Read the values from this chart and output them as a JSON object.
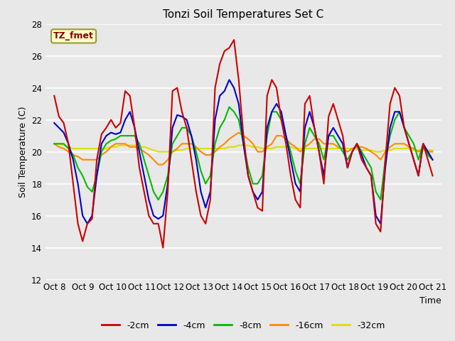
{
  "title": "Tonzi Soil Temperatures Set C",
  "xlabel": "Time",
  "ylabel": "Soil Temperature (C)",
  "xlim": [
    -0.3,
    13.3
  ],
  "ylim": [
    12,
    28
  ],
  "yticks": [
    12,
    14,
    16,
    18,
    20,
    22,
    24,
    26,
    28
  ],
  "xtick_labels": [
    "Oct 8",
    "Oct 9",
    "Oct 10",
    "Oct 11",
    "Oct 12",
    "Oct 13",
    "Oct 14",
    "Oct 15",
    "Oct 16",
    "Oct 17",
    "Oct 18",
    "Oct 19",
    "Oct 20",
    "Oct 21"
  ],
  "colors": {
    "-2cm": "#cc0000",
    "-4cm": "#0000cc",
    "-8cm": "#00bb00",
    "-16cm": "#ff8800",
    "-32cm": "#dddd00"
  },
  "annotation_text": "TZ_fmet",
  "annotation_color": "#880000",
  "annotation_bg": "#ffffcc",
  "annotation_edge": "#999933",
  "fig_bg": "#e8e8e8",
  "plot_bg": "#e8e8e8",
  "grid_color": "#ffffff",
  "linewidth": 1.5,
  "t_2cm": [
    23.5,
    22.2,
    21.8,
    20.5,
    18.0,
    15.5,
    14.4,
    15.5,
    15.8,
    19.5,
    21.1,
    21.5,
    22.0,
    21.5,
    21.8,
    23.8,
    23.5,
    21.5,
    19.0,
    17.5,
    16.0,
    15.5,
    15.5,
    14.0,
    17.5,
    23.8,
    24.0,
    22.5,
    21.5,
    19.5,
    17.5,
    16.0,
    15.5,
    17.0,
    24.0,
    25.5,
    26.3,
    26.5,
    27.0,
    24.5,
    21.0,
    18.5,
    17.5,
    16.5,
    16.3,
    23.5,
    24.5,
    24.0,
    22.0,
    20.5,
    18.5,
    17.0,
    16.5,
    23.0,
    23.5,
    21.5,
    20.0,
    18.0,
    22.2,
    23.0,
    22.0,
    21.0,
    19.0,
    20.0,
    20.5,
    19.5,
    19.0,
    18.5,
    15.5,
    15.0,
    19.5,
    23.0,
    24.0,
    23.5,
    21.5,
    20.5,
    19.5,
    18.5,
    20.5,
    19.5,
    18.5
  ],
  "t_4cm": [
    21.8,
    21.5,
    21.2,
    20.5,
    19.5,
    18.0,
    16.0,
    15.5,
    16.0,
    18.5,
    20.5,
    21.0,
    21.2,
    21.1,
    21.2,
    22.0,
    22.5,
    21.5,
    20.0,
    18.5,
    17.0,
    16.0,
    15.8,
    16.0,
    18.0,
    21.5,
    22.3,
    22.2,
    22.0,
    21.0,
    19.5,
    17.5,
    16.5,
    17.5,
    22.0,
    23.5,
    23.8,
    24.5,
    24.0,
    23.0,
    20.5,
    18.5,
    17.5,
    17.0,
    17.5,
    21.5,
    22.5,
    23.0,
    22.5,
    21.0,
    19.5,
    18.0,
    17.5,
    21.5,
    22.5,
    21.5,
    20.0,
    18.5,
    21.0,
    21.5,
    21.0,
    20.5,
    19.0,
    20.0,
    20.5,
    19.8,
    19.0,
    18.5,
    16.0,
    15.5,
    19.0,
    21.5,
    22.5,
    22.5,
    21.5,
    20.5,
    19.5,
    18.5,
    20.5,
    20.0,
    19.5
  ],
  "t_8cm": [
    20.5,
    20.5,
    20.5,
    20.2,
    19.8,
    19.0,
    18.5,
    17.8,
    17.5,
    18.5,
    20.0,
    20.5,
    20.7,
    20.8,
    21.0,
    21.0,
    21.0,
    21.0,
    20.5,
    19.5,
    18.5,
    17.5,
    17.0,
    17.5,
    18.5,
    20.5,
    21.0,
    21.5,
    21.5,
    21.0,
    20.0,
    18.8,
    18.0,
    18.5,
    20.5,
    21.5,
    22.0,
    22.8,
    22.5,
    22.0,
    20.5,
    19.0,
    18.0,
    18.0,
    18.5,
    21.0,
    22.5,
    22.5,
    22.0,
    21.0,
    20.0,
    18.8,
    18.0,
    20.5,
    21.5,
    21.0,
    20.5,
    19.5,
    21.0,
    21.0,
    20.5,
    20.0,
    19.5,
    20.0,
    20.5,
    20.0,
    19.5,
    19.0,
    17.5,
    17.0,
    19.5,
    21.0,
    22.0,
    22.5,
    21.5,
    21.0,
    20.5,
    19.5,
    20.5,
    19.8,
    19.5
  ],
  "t_16cm": [
    20.5,
    20.3,
    20.2,
    20.0,
    19.8,
    19.7,
    19.5,
    19.5,
    19.5,
    19.5,
    19.8,
    20.0,
    20.3,
    20.5,
    20.5,
    20.5,
    20.3,
    20.3,
    20.2,
    20.0,
    19.8,
    19.5,
    19.2,
    19.2,
    19.5,
    20.0,
    20.2,
    20.5,
    20.5,
    20.5,
    20.3,
    20.0,
    19.8,
    19.8,
    20.0,
    20.3,
    20.5,
    20.8,
    21.0,
    21.2,
    21.0,
    20.8,
    20.5,
    20.0,
    20.0,
    20.3,
    20.5,
    21.0,
    21.0,
    20.8,
    20.5,
    20.3,
    20.0,
    20.3,
    20.5,
    20.8,
    20.8,
    20.5,
    20.5,
    20.5,
    20.3,
    20.2,
    20.0,
    20.2,
    20.3,
    20.3,
    20.2,
    20.0,
    19.8,
    19.5,
    20.0,
    20.3,
    20.5,
    20.5,
    20.5,
    20.3,
    20.2,
    20.0,
    20.2,
    20.0,
    20.0
  ],
  "t_32cm": [
    20.5,
    20.5,
    20.4,
    20.3,
    20.2,
    20.2,
    20.2,
    20.2,
    20.2,
    20.2,
    20.2,
    20.2,
    20.3,
    20.3,
    20.4,
    20.4,
    20.4,
    20.4,
    20.3,
    20.3,
    20.2,
    20.1,
    20.0,
    20.0,
    20.0,
    20.0,
    20.1,
    20.1,
    20.2,
    20.2,
    20.2,
    20.2,
    20.2,
    20.2,
    20.2,
    20.2,
    20.2,
    20.3,
    20.3,
    20.4,
    20.4,
    20.4,
    20.3,
    20.3,
    20.2,
    20.2,
    20.2,
    20.3,
    20.3,
    20.3,
    20.3,
    20.2,
    20.2,
    20.2,
    20.2,
    20.2,
    20.2,
    20.2,
    20.2,
    20.2,
    20.2,
    20.2,
    20.2,
    20.2,
    20.2,
    20.1,
    20.1,
    20.1,
    20.0,
    20.0,
    20.1,
    20.1,
    20.2,
    20.2,
    20.2,
    20.2,
    20.1,
    20.1,
    20.1,
    20.1,
    20.1
  ]
}
